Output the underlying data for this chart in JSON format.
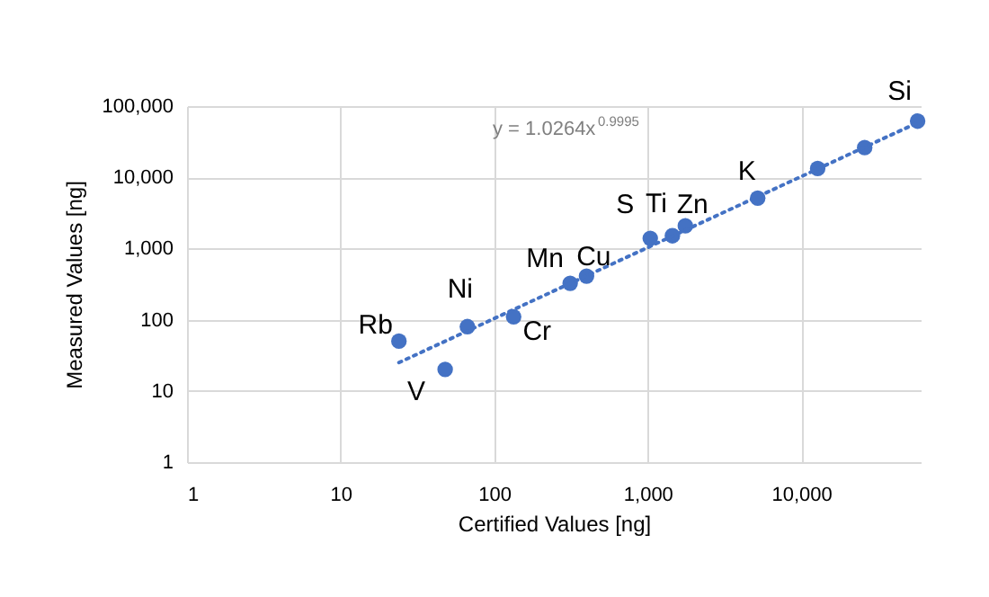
{
  "chart_data": {
    "type": "scatter",
    "xlabel": "Certified Values [ng]",
    "ylabel": "Measured Values [ng]",
    "log": "xy",
    "grid": true,
    "xlim": [
      1,
      60000
    ],
    "xticks": [
      {
        "value": 1,
        "label": "1"
      },
      {
        "value": 10,
        "label": "10"
      },
      {
        "value": 100,
        "label": "100"
      },
      {
        "value": 1000,
        "label": "1,000"
      },
      {
        "value": 10000,
        "label": "10,000"
      }
    ],
    "ylim": [
      1,
      100000
    ],
    "yticks": [
      {
        "value": 1,
        "label": "1"
      },
      {
        "value": 10,
        "label": "10"
      },
      {
        "value": 100,
        "label": "100"
      },
      {
        "value": 1000,
        "label": "1,000"
      },
      {
        "value": 10000,
        "label": "10,000"
      },
      {
        "value": 100000,
        "label": "100,000"
      }
    ],
    "series": [
      {
        "type": "scatter",
        "marker": "circle",
        "color": "#4472c4",
        "x": [
          24,
          48,
          67,
          134,
          313,
          400,
          1040,
          1450,
          1760,
          5210,
          12800,
          25900,
          57300
        ],
        "values": [
          50,
          20,
          80,
          110,
          325,
          410,
          1390,
          1510,
          2090,
          5100,
          13300,
          26100,
          61500
        ]
      },
      {
        "type": "line",
        "color": "#4472c4",
        "line_style": "dotted",
        "x": [
          24,
          57300
        ],
        "values": [
          25,
          58500
        ]
      }
    ],
    "annotations": [
      {
        "text": "Rb",
        "x": 24,
        "y": 50
      },
      {
        "text": "V",
        "x": 48,
        "y": 20
      },
      {
        "text": "Ni",
        "x": 67,
        "y": 80
      },
      {
        "text": "Cr",
        "x": 134,
        "y": 110
      },
      {
        "text": "Mn",
        "x": 313,
        "y": 325
      },
      {
        "text": "Cu",
        "x": 400,
        "y": 410
      },
      {
        "text": "S",
        "x": 1040,
        "y": 1390
      },
      {
        "text": "Ti",
        "x": 1450,
        "y": 1510
      },
      {
        "text": "Zn",
        "x": 1760,
        "y": 2090
      },
      {
        "text": "K",
        "x": 5210,
        "y": 5100
      },
      {
        "text": "Si",
        "x": 57300,
        "y": 61500
      },
      "y = 1.0264x$^{0.9995}$"
    ]
  }
}
